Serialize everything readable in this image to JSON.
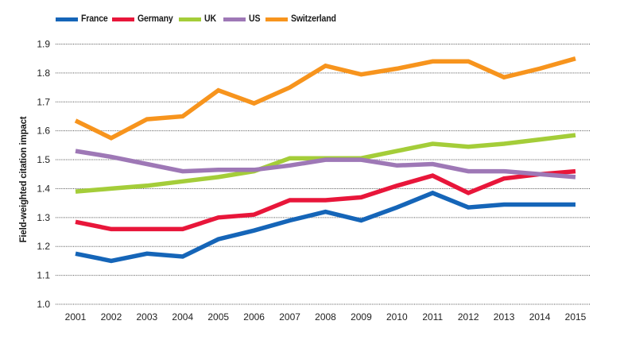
{
  "chart_data": {
    "type": "line",
    "title": "",
    "xlabel": "",
    "ylabel": "Field-weighted citation impact",
    "ylim": [
      1.0,
      1.9
    ],
    "yticks": [
      "1.0",
      "1.1",
      "1.2",
      "1.3",
      "1.4",
      "1.5",
      "1.6",
      "1.7",
      "1.8",
      "1.9"
    ],
    "grid": "horizontal-dotted",
    "legend_position": "top-left",
    "x": [
      "2001",
      "2002",
      "2003",
      "2004",
      "2005",
      "2006",
      "2007",
      "2008",
      "2009",
      "2010",
      "2011",
      "2012",
      "2013",
      "2014",
      "2015"
    ],
    "series": [
      {
        "name": "France",
        "color": "#1565b8",
        "values": [
          1.175,
          1.15,
          1.175,
          1.165,
          1.225,
          1.255,
          1.29,
          1.32,
          1.29,
          1.335,
          1.385,
          1.335,
          1.345,
          1.345,
          1.345
        ]
      },
      {
        "name": "Germany",
        "color": "#e8163a",
        "values": [
          1.285,
          1.26,
          1.26,
          1.26,
          1.3,
          1.31,
          1.36,
          1.36,
          1.37,
          1.41,
          1.445,
          1.385,
          1.435,
          1.45,
          1.46
        ]
      },
      {
        "name": "UK",
        "color": "#a4cd39",
        "values": [
          1.39,
          1.4,
          1.41,
          1.425,
          1.44,
          1.46,
          1.505,
          1.505,
          1.505,
          1.53,
          1.555,
          1.545,
          1.555,
          1.57,
          1.585
        ]
      },
      {
        "name": "US",
        "color": "#9e78b6",
        "values": [
          1.53,
          1.51,
          1.485,
          1.46,
          1.465,
          1.465,
          1.48,
          1.5,
          1.5,
          1.48,
          1.485,
          1.46,
          1.46,
          1.45,
          1.44
        ]
      },
      {
        "name": "Switzerland",
        "color": "#f7941d",
        "values": [
          1.635,
          1.575,
          1.64,
          1.65,
          1.74,
          1.695,
          1.75,
          1.825,
          1.795,
          1.815,
          1.84,
          1.84,
          1.785,
          1.815,
          1.85
        ]
      }
    ]
  }
}
